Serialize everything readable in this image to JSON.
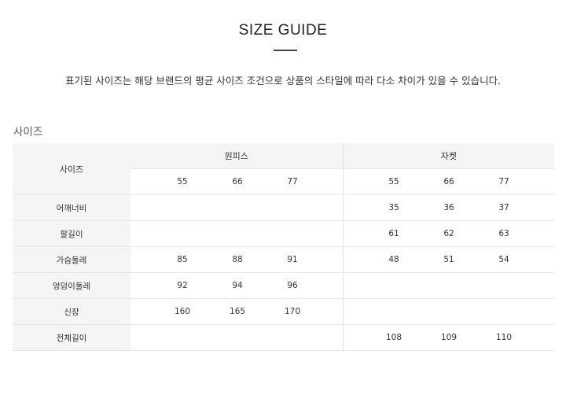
{
  "title": "SIZE GUIDE",
  "description": "표기된 사이즈는 해당 브랜드의 평균 사이즈 조건으로 상품의 스타일에 따라 다소 차이가 있을 수 있습니다.",
  "section_title": "사이즈",
  "table": {
    "corner": "사이즈",
    "groups": [
      {
        "name": "원피스",
        "sizes": [
          "55",
          "66",
          "77"
        ]
      },
      {
        "name": "자켓",
        "sizes": [
          "55",
          "66",
          "77"
        ]
      }
    ],
    "rows": [
      {
        "label": "어깨너비",
        "onepiece": [
          "",
          "",
          ""
        ],
        "jacket": [
          "35",
          "36",
          "37"
        ]
      },
      {
        "label": "팔길이",
        "onepiece": [
          "",
          "",
          ""
        ],
        "jacket": [
          "61",
          "62",
          "63"
        ]
      },
      {
        "label": "가슴둘레",
        "onepiece": [
          "85",
          "88",
          "91"
        ],
        "jacket": [
          "48",
          "51",
          "54"
        ]
      },
      {
        "label": "엉덩이둘레",
        "onepiece": [
          "92",
          "94",
          "96"
        ],
        "jacket": [
          "",
          "",
          ""
        ]
      },
      {
        "label": "신장",
        "onepiece": [
          "160",
          "165",
          "170"
        ],
        "jacket": [
          "",
          "",
          ""
        ]
      },
      {
        "label": "전체길이",
        "onepiece": [
          "",
          "",
          ""
        ],
        "jacket": [
          "108",
          "109",
          "110"
        ]
      }
    ]
  }
}
